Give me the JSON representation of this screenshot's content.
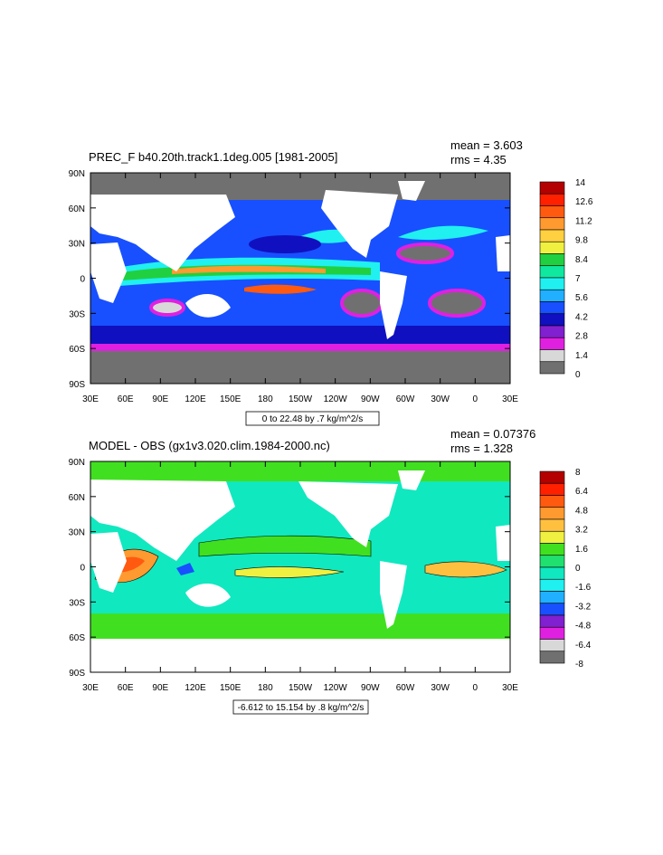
{
  "panels": [
    {
      "title": "PREC_F b40.20th.track1.1deg.005 [1981-2005]",
      "stats": [
        "mean = 3.603",
        "rms = 4.35"
      ],
      "subtitle": "0 to 22.48 by .7 kg/m^2/s",
      "lat_ticks": [
        "90N",
        "60N",
        "30N",
        "0",
        "30S",
        "60S",
        "90S"
      ],
      "lon_ticks": [
        "30E",
        "60E",
        "90E",
        "120E",
        "150E",
        "180",
        "150W",
        "120W",
        "90W",
        "60W",
        "30W",
        "0",
        "30E"
      ],
      "colorbar": {
        "labels": [
          "14",
          "12.6",
          "11.2",
          "9.8",
          "8.4",
          "7",
          "5.6",
          "4.2",
          "2.8",
          "1.4",
          "0"
        ],
        "colors": [
          "#b40000",
          "#ff2000",
          "#ff5a10",
          "#ff9a30",
          "#ffd040",
          "#f0f040",
          "#20d040",
          "#10e8a0",
          "#20f0f0",
          "#20b0ff",
          "#1850ff",
          "#1010c0",
          "#8020d0",
          "#e020e0",
          "#d8d8d8",
          "#707070"
        ]
      }
    },
    {
      "title": "MODEL - OBS (gx1v3.020.clim.1984-2000.nc)",
      "stats": [
        "mean = 0.07376",
        "rms = 1.328"
      ],
      "subtitle": "-6.612 to 15.154 by .8 kg/m^2/s",
      "lat_ticks": [
        "90N",
        "60N",
        "30N",
        "0",
        "30S",
        "60S",
        "90S"
      ],
      "lon_ticks": [
        "30E",
        "60E",
        "90E",
        "120E",
        "150E",
        "180",
        "150W",
        "120W",
        "90W",
        "60W",
        "30W",
        "0",
        "30E"
      ],
      "colorbar": {
        "labels": [
          "8",
          "6.4",
          "4.8",
          "3.2",
          "1.6",
          "0",
          "-1.6",
          "-3.2",
          "-4.8",
          "-6.4",
          "-8"
        ],
        "colors": [
          "#b40000",
          "#ff2000",
          "#ff5a10",
          "#ff9a30",
          "#ffc040",
          "#f0f040",
          "#40e020",
          "#20e070",
          "#10e8c0",
          "#20f0f0",
          "#20b0ff",
          "#1850ff",
          "#8020d0",
          "#e020e0",
          "#d8d8d8",
          "#707070"
        ]
      }
    }
  ],
  "chart_data": [
    {
      "type": "heatmap",
      "title": "PREC_F b40.20th.track1.1deg.005 [1981-2005]",
      "subtitle": "0 to 22.48 by .7 kg/m^2/s",
      "xlim": [
        30,
        390
      ],
      "ylim": [
        -90,
        90
      ],
      "stats": {
        "mean": 3.603,
        "rms": 4.35
      },
      "colorbar_levels": [
        0,
        1.4,
        2.8,
        4.2,
        5.6,
        7,
        8.4,
        9.8,
        11.2,
        12.6,
        14
      ]
    },
    {
      "type": "heatmap",
      "title": "MODEL - OBS (gx1v3.020.clim.1984-2000.nc)",
      "subtitle": "-6.612 to 15.154 by .8 kg/m^2/s",
      "xlim": [
        30,
        390
      ],
      "ylim": [
        -90,
        90
      ],
      "stats": {
        "mean": 0.07376,
        "rms": 1.328
      },
      "colorbar_levels": [
        -8,
        -6.4,
        -4.8,
        -3.2,
        -1.6,
        0,
        1.6,
        3.2,
        4.8,
        6.4,
        8
      ]
    }
  ]
}
